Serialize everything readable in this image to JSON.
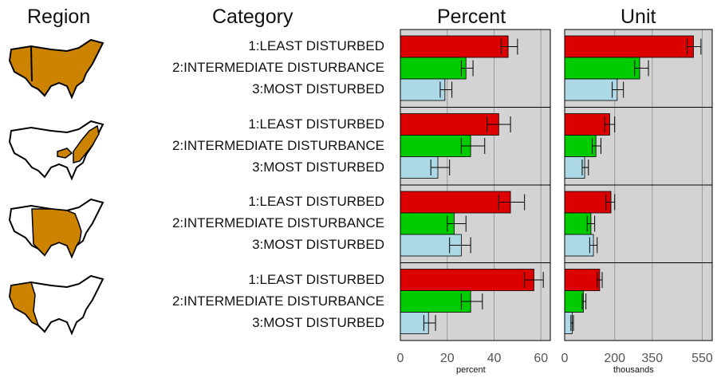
{
  "headers": {
    "region": "Region",
    "category": "Category",
    "percent": "Percent",
    "unit": "Unit"
  },
  "axes": {
    "percent_label": "percent",
    "unit_label": "thousands"
  },
  "colors": {
    "least": "#dd0000",
    "intermediate": "#00cc00",
    "most": "#add8e6",
    "panel_bg": "#d3d3d3",
    "map_fill": "#cc8400"
  },
  "chart_data": {
    "type": "bar",
    "orientation": "horizontal",
    "categories": [
      "1:LEAST DISTURBED",
      "2:INTERMEDIATE DISTURBANCE",
      "3:MOST DISTURBED"
    ],
    "region_maps": [
      "whole-us-except-west",
      "appalachian-east",
      "central-plains-south",
      "west"
    ],
    "panels": [
      {
        "name": "Percent",
        "xlabel": "percent",
        "ticks": [
          0,
          20,
          40,
          60
        ],
        "xlim": [
          0,
          64
        ],
        "rows": [
          {
            "values": [
              46,
              28,
              19
            ],
            "err_low": [
              43,
              26,
              17
            ],
            "err_high": [
              50,
              31,
              22
            ]
          },
          {
            "values": [
              42,
              30,
              16
            ],
            "err_low": [
              37,
              26,
              13
            ],
            "err_high": [
              47,
              36,
              21
            ]
          },
          {
            "values": [
              47,
              23,
              26
            ],
            "err_low": [
              42,
              20,
              21
            ],
            "err_high": [
              53,
              28,
              30
            ]
          },
          {
            "values": [
              57,
              30,
              12
            ],
            "err_low": [
              53,
              26,
              10
            ],
            "err_high": [
              61,
              35,
              15
            ]
          }
        ]
      },
      {
        "name": "Unit",
        "xlabel": "thousands",
        "ticks": [
          0,
          200,
          350,
          550
        ],
        "xlim": [
          0,
          590
        ],
        "rows": [
          {
            "values": [
              515,
              300,
              210
            ],
            "err_low": [
              490,
              280,
              190
            ],
            "err_high": [
              545,
              335,
              235
            ]
          },
          {
            "values": [
              180,
              125,
              80
            ],
            "err_low": [
              160,
              110,
              70
            ],
            "err_high": [
              200,
              145,
              95
            ]
          },
          {
            "values": [
              185,
              105,
              115
            ],
            "err_low": [
              165,
              90,
              100
            ],
            "err_high": [
              200,
              120,
              130
            ]
          },
          {
            "values": [
              140,
              75,
              30
            ],
            "err_low": [
              130,
              70,
              25
            ],
            "err_high": [
              150,
              85,
              35
            ]
          }
        ]
      }
    ]
  }
}
